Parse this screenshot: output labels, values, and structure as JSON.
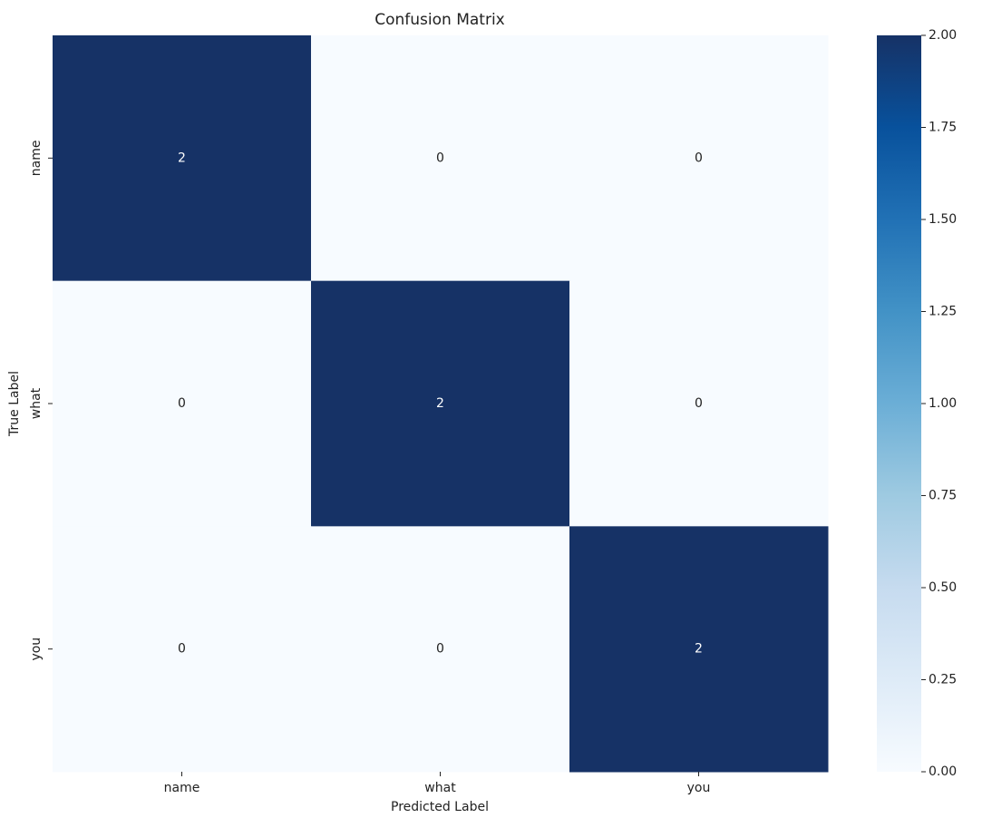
{
  "chart_data": {
    "type": "heatmap",
    "title": "Confusion Matrix",
    "x_label": "Predicted Label",
    "y_label": "True Label",
    "x_categories": [
      "name",
      "what",
      "you"
    ],
    "y_categories": [
      "name",
      "what",
      "you"
    ],
    "values": [
      [
        2,
        0,
        0
      ],
      [
        0,
        2,
        0
      ],
      [
        0,
        0,
        2
      ]
    ],
    "colormap": [
      "#f7fbff",
      "#deebf7",
      "#c6dbef",
      "#9ecae1",
      "#6baed6",
      "#4292c6",
      "#2171b5",
      "#08519c",
      "#163266"
    ],
    "clim": [
      0,
      2
    ],
    "cticks": [
      {
        "value": 0,
        "label": "0.00"
      },
      0.25,
      {
        "value": 0.5,
        "label": "0.50"
      },
      0.75,
      {
        "value": 1,
        "label": "1.00"
      },
      1.25,
      {
        "value": 1.5,
        "label": "1.50"
      },
      1.75,
      {
        "value": 2,
        "label": "2.00"
      }
    ]
  }
}
